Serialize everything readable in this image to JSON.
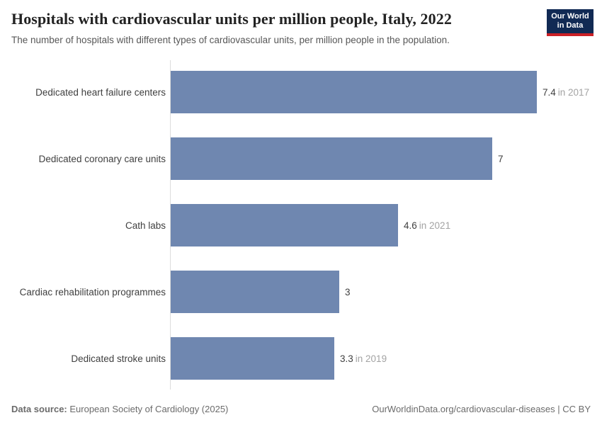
{
  "header": {
    "title": "Hospitals with cardiovascular units per million people, Italy, 2022",
    "subtitle": "The number of hospitals with different types of cardiovascular units, per million people in the population.",
    "logo": {
      "line1": "Our World",
      "line2": "in Data",
      "bg_color": "#112a54",
      "accent_color": "#cb2026"
    }
  },
  "chart_data": {
    "type": "bar",
    "orientation": "horizontal",
    "title": "Hospitals with cardiovascular units per million people, Italy, 2022",
    "xlabel": "",
    "ylabel": "",
    "value_unit": "hospitals per million people",
    "xlim": [
      0,
      8.5
    ],
    "grid": false,
    "legend": false,
    "bar_color": "#6f87b0",
    "axis_color": "#dcdcdc",
    "categories": [
      "Dedicated heart failure centers",
      "Dedicated coronary care units",
      "Cath labs",
      "Cardiac rehabilitation programmes",
      "Dedicated stroke units"
    ],
    "bars": [
      {
        "category": "Dedicated heart failure centers",
        "value_label": "7.4",
        "plotted_value": 7.4,
        "year_note": "in 2017"
      },
      {
        "category": "Dedicated coronary care units",
        "value_label": "7",
        "plotted_value": 6.5,
        "year_note": ""
      },
      {
        "category": "Cath labs",
        "value_label": "4.6",
        "plotted_value": 4.6,
        "year_note": "in 2021"
      },
      {
        "category": "Cardiac rehabilitation programmes",
        "value_label": "3",
        "plotted_value": 3.4,
        "year_note": ""
      },
      {
        "category": "Dedicated stroke units",
        "value_label": "3.3",
        "plotted_value": 3.3,
        "year_note": "in 2019"
      }
    ]
  },
  "footer": {
    "source_label": "Data source:",
    "source_text": " European Society of Cardiology (2025)",
    "right_text": "OurWorldinData.org/cardiovascular-diseases | CC BY"
  }
}
